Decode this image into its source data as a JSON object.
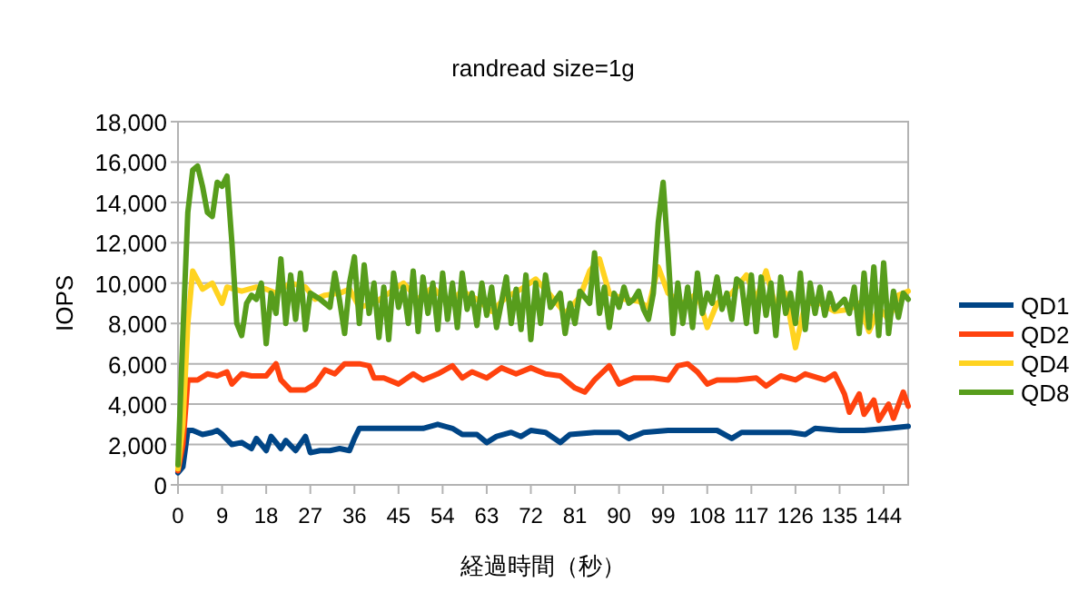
{
  "chart_data": {
    "type": "line",
    "title": "randread size=1g",
    "xlabel": "経過時間（秒）",
    "ylabel": "IOPS",
    "xlim": [
      0,
      149
    ],
    "xticks": [
      0,
      9,
      18,
      27,
      36,
      45,
      54,
      63,
      72,
      81,
      90,
      99,
      108,
      117,
      126,
      135,
      144
    ],
    "ylim": [
      0,
      18000
    ],
    "yticks": [
      {
        "value": 0,
        "label": "0"
      },
      {
        "value": 2000,
        "label": "2,000"
      },
      {
        "value": 4000,
        "label": "4,000"
      },
      {
        "value": 6000,
        "label": "6,000"
      },
      {
        "value": 8000,
        "label": "8,000"
      },
      {
        "value": 10000,
        "label": "10,000"
      },
      {
        "value": 12000,
        "label": "12,000"
      },
      {
        "value": 14000,
        "label": "14,000"
      },
      {
        "value": 16000,
        "label": "16,000"
      },
      {
        "value": 18000,
        "label": "18,000"
      }
    ],
    "grid": "y",
    "legend": "right",
    "marker": "none",
    "line_style": "solid",
    "series": [
      {
        "name": "QD1",
        "color": "#004586",
        "x": [
          0,
          1,
          2,
          3,
          5,
          7,
          8,
          9,
          11,
          13,
          15,
          16,
          18,
          19,
          21,
          22,
          24,
          26,
          27,
          29,
          31,
          33,
          35,
          36,
          37,
          40,
          45,
          50,
          53,
          56,
          58,
          61,
          63,
          65,
          68,
          70,
          72,
          75,
          78,
          80,
          85,
          90,
          92,
          95,
          100,
          105,
          110,
          113,
          115,
          120,
          125,
          128,
          130,
          135,
          140,
          145,
          149
        ],
        "values": [
          600,
          900,
          2700,
          2700,
          2500,
          2600,
          2700,
          2500,
          2000,
          2100,
          1800,
          2300,
          1700,
          2400,
          1800,
          2200,
          1700,
          2400,
          1600,
          1700,
          1700,
          1800,
          1700,
          2300,
          2800,
          2800,
          2800,
          2800,
          3000,
          2800,
          2500,
          2500,
          2100,
          2400,
          2600,
          2400,
          2700,
          2600,
          2100,
          2500,
          2600,
          2600,
          2300,
          2600,
          2700,
          2700,
          2700,
          2300,
          2600,
          2600,
          2600,
          2500,
          2800,
          2700,
          2700,
          2800,
          2900
        ]
      },
      {
        "name": "QD2",
        "color": "#ff420e",
        "x": [
          0,
          1,
          2,
          4,
          6,
          8,
          10,
          11,
          13,
          15,
          18,
          20,
          21,
          23,
          26,
          28,
          30,
          32,
          34,
          37,
          39,
          40,
          42,
          45,
          48,
          50,
          53,
          56,
          58,
          60,
          63,
          66,
          69,
          72,
          75,
          78,
          81,
          83,
          85,
          88,
          90,
          93,
          97,
          100,
          102,
          104,
          106,
          108,
          110,
          114,
          118,
          120,
          123,
          126,
          128,
          132,
          134,
          136,
          137,
          139,
          140,
          142,
          143,
          145,
          146,
          148,
          149
        ],
        "values": [
          700,
          2000,
          5200,
          5200,
          5500,
          5400,
          5600,
          5000,
          5500,
          5400,
          5400,
          6000,
          5200,
          4700,
          4700,
          5000,
          5700,
          5500,
          6000,
          6000,
          5900,
          5300,
          5300,
          5000,
          5500,
          5200,
          5500,
          5900,
          5300,
          5600,
          5300,
          5800,
          5500,
          5800,
          5500,
          5400,
          4800,
          4600,
          5200,
          5900,
          5000,
          5300,
          5300,
          5200,
          5900,
          6000,
          5600,
          5000,
          5200,
          5200,
          5300,
          4900,
          5400,
          5200,
          5500,
          5200,
          5500,
          4500,
          3600,
          4500,
          3500,
          4200,
          3200,
          4000,
          3300,
          4600,
          3900
        ]
      },
      {
        "name": "QD4",
        "color": "#ffd320",
        "x": [
          0,
          1,
          2,
          3,
          5,
          7,
          9,
          10,
          13,
          16,
          18,
          20,
          23,
          26,
          28,
          30,
          33,
          35,
          37,
          40,
          43,
          46,
          49,
          52,
          55,
          58,
          61,
          64,
          67,
          70,
          73,
          76,
          79,
          82,
          84,
          86,
          88,
          91,
          94,
          96,
          98,
          100,
          103,
          106,
          108,
          110,
          113,
          116,
          118,
          120,
          122,
          124,
          126,
          128,
          131,
          134,
          137,
          139,
          141,
          143,
          145,
          147,
          149
        ],
        "values": [
          800,
          3000,
          8000,
          10600,
          9700,
          10000,
          9000,
          9800,
          9600,
          9800,
          9700,
          9500,
          10000,
          9800,
          9200,
          9400,
          9500,
          9700,
          8800,
          9000,
          9500,
          10000,
          9200,
          9800,
          9000,
          9600,
          9200,
          8600,
          9300,
          9700,
          10200,
          9400,
          8500,
          9300,
          10600,
          11200,
          9500,
          9200,
          9100,
          8800,
          10800,
          9500,
          9000,
          9500,
          7800,
          9000,
          9500,
          10400,
          9200,
          10600,
          8800,
          9500,
          6800,
          9000,
          9000,
          8600,
          8700,
          9000,
          7600,
          8800,
          8200,
          9400,
          9600
        ]
      },
      {
        "name": "QD8",
        "color": "#579d1c",
        "x": [
          0,
          1,
          2,
          3,
          4,
          5,
          6,
          7,
          8,
          9,
          10,
          11,
          12,
          13,
          14,
          15,
          16,
          17,
          18,
          19,
          20,
          21,
          22,
          23,
          24,
          25,
          26,
          27,
          29,
          31,
          32,
          33,
          34,
          35,
          36,
          37,
          38,
          39,
          40,
          41,
          42,
          43,
          44,
          45,
          46,
          47,
          48,
          49,
          50,
          51,
          52,
          53,
          54,
          55,
          56,
          57,
          58,
          59,
          60,
          61,
          62,
          63,
          64,
          65,
          67,
          68,
          69,
          70,
          71,
          72,
          73,
          74,
          75,
          76,
          78,
          79,
          80,
          81,
          82,
          84,
          85,
          86,
          87,
          88,
          89,
          90,
          91,
          92,
          93,
          94,
          95,
          96,
          97,
          98,
          99,
          100,
          101,
          102,
          103,
          104,
          105,
          106,
          107,
          108,
          109,
          110,
          111,
          112,
          113,
          114,
          115,
          116,
          117,
          118,
          119,
          120,
          121,
          122,
          123,
          124,
          125,
          126,
          127,
          128,
          129,
          130,
          131,
          132,
          133,
          134,
          136,
          137,
          138,
          139,
          140,
          141,
          142,
          143,
          144,
          145,
          146,
          147,
          148,
          149
        ],
        "values": [
          1000,
          7500,
          13500,
          15600,
          15800,
          14800,
          13500,
          13300,
          15000,
          14800,
          15300,
          12000,
          8000,
          7400,
          9000,
          9400,
          9200,
          10000,
          7000,
          9500,
          8500,
          11200,
          8000,
          10400,
          8200,
          10500,
          7700,
          9500,
          9200,
          8800,
          10500,
          9100,
          7500,
          10000,
          11300,
          8000,
          10900,
          8500,
          10000,
          7300,
          9800,
          7200,
          10500,
          8800,
          9800,
          8000,
          10600,
          7600,
          10300,
          8500,
          10000,
          7700,
          10500,
          8200,
          10000,
          7800,
          10500,
          8700,
          9500,
          7900,
          10000,
          8400,
          9800,
          7800,
          10300,
          8000,
          9700,
          7700,
          10400,
          7200,
          10000,
          8000,
          10400,
          8800,
          9500,
          7500,
          9000,
          8000,
          9600,
          9000,
          11500,
          8500,
          9800,
          7800,
          9500,
          8800,
          9800,
          9000,
          9200,
          9600,
          8700,
          8200,
          9500,
          13000,
          15000,
          11500,
          7500,
          10000,
          8000,
          9800,
          7800,
          10500,
          8500,
          9500,
          9000,
          10300,
          8700,
          9500,
          8200,
          10200,
          10000,
          8000,
          10400,
          7600,
          10300,
          8400,
          10000,
          7400,
          10300,
          8500,
          9500,
          8000,
          10500,
          7700,
          10000,
          8500,
          9800,
          8400,
          9500,
          8700,
          9200,
          8500,
          9800,
          7500,
          10500,
          7800,
          10800,
          7400,
          11000,
          7500,
          9600,
          8300,
          9500,
          9200
        ]
      }
    ]
  }
}
